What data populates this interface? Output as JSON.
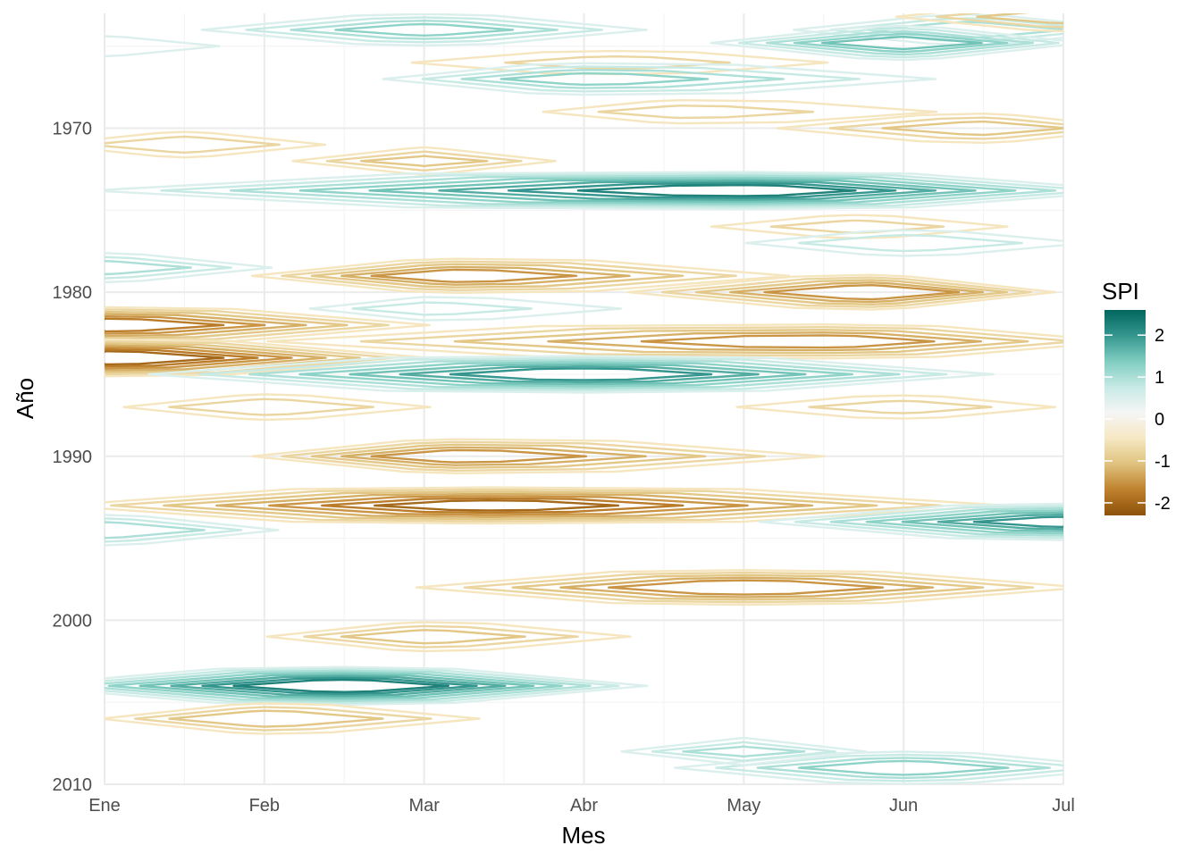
{
  "chart_data": {
    "type": "contour",
    "title": "",
    "xlabel": "Mes",
    "ylabel": "Año",
    "x_ticks": [
      "Ene",
      "Feb",
      "Mar",
      "Abr",
      "May",
      "Jun",
      "Jul"
    ],
    "y_ticks": [
      1970,
      1980,
      1990,
      2000,
      2010
    ],
    "xlim": [
      1,
      7
    ],
    "ylim": [
      1963,
      2010
    ],
    "y_reversed": true,
    "grid": true,
    "legend": {
      "title": "SPI",
      "position": "right",
      "ticks": [
        2,
        1,
        0,
        -1,
        -2
      ],
      "range": [
        -2.3,
        2.6
      ],
      "colors": [
        "#8c510a",
        "#bf812d",
        "#dfc27d",
        "#f6e8c3",
        "#f5f5f5",
        "#c7eae5",
        "#80cdc1",
        "#35978f",
        "#01665e"
      ]
    },
    "contour_levels": [
      -2.25,
      -2,
      -1.75,
      -1.5,
      -1.25,
      -1,
      -0.75,
      -0.5,
      0.5,
      0.75,
      1,
      1.25,
      1.5,
      1.75,
      2,
      2.25
    ],
    "events": [
      {
        "year": 1964.0,
        "from": 2.0,
        "to": 4.0,
        "peak_month": 3.0,
        "spi": 1.3
      },
      {
        "year": 1964.0,
        "from": 5.8,
        "to": 7.0,
        "peak_month": 6.4,
        "spi": 1.2
      },
      {
        "year": 1965.0,
        "from": 1.0,
        "to": 1.5,
        "peak_month": 1.0,
        "spi": 0.7
      },
      {
        "year": 1964.8,
        "from": 5.4,
        "to": 6.5,
        "peak_month": 6.0,
        "spi": 1.6
      },
      {
        "year": 1963.2,
        "from": 6.4,
        "to": 7.0,
        "peak_month": 7.0,
        "spi": -1.1
      },
      {
        "year": 1966.0,
        "from": 2.7,
        "to": 5.8,
        "peak_month": 4.2,
        "spi": -0.8
      },
      {
        "year": 1967.0,
        "from": 3.2,
        "to": 6.2,
        "peak_month": 4.0,
        "spi": 1.3
      },
      {
        "year": 1969.0,
        "from": 4.0,
        "to": 6.8,
        "peak_month": 4.6,
        "spi": -0.8
      },
      {
        "year": 1970.0,
        "from": 5.5,
        "to": 7.0,
        "peak_month": 6.5,
        "spi": -1.1
      },
      {
        "year": 1971.0,
        "from": 1.0,
        "to": 2.0,
        "peak_month": 1.5,
        "spi": -0.9
      },
      {
        "year": 1972.0,
        "from": 2.7,
        "to": 3.3,
        "peak_month": 3.0,
        "spi": -1.0
      },
      {
        "year": 1973.8,
        "from": 1.0,
        "to": 7.0,
        "peak_month": 5.0,
        "spi": 2.3
      },
      {
        "year": 1976.0,
        "from": 5.0,
        "to": 6.5,
        "peak_month": 5.7,
        "spi": -0.8
      },
      {
        "year": 1977.0,
        "from": 5.3,
        "to": 7.0,
        "peak_month": 6.0,
        "spi": 0.9
      },
      {
        "year": 1978.5,
        "from": 1.0,
        "to": 1.6,
        "peak_month": 1.0,
        "spi": 1.1
      },
      {
        "year": 1979.0,
        "from": 2.5,
        "to": 5.0,
        "peak_month": 3.2,
        "spi": -1.6
      },
      {
        "year": 1980.0,
        "from": 4.8,
        "to": 6.3,
        "peak_month": 5.8,
        "spi": -1.7
      },
      {
        "year": 1981.0,
        "from": 2.7,
        "to": 4.4,
        "peak_month": 3.0,
        "spi": 0.8
      },
      {
        "year": 1982.0,
        "from": 1.0,
        "to": 2.6,
        "peak_month": 1.0,
        "spi": -1.9
      },
      {
        "year": 1983.0,
        "from": 1.8,
        "to": 7.0,
        "peak_month": 5.5,
        "spi": -1.6
      },
      {
        "year": 1984.0,
        "from": 1.0,
        "to": 2.5,
        "peak_month": 1.0,
        "spi": -2.2
      },
      {
        "year": 1985.0,
        "from": 1.6,
        "to": 6.2,
        "peak_month": 4.0,
        "spi": 2.1
      },
      {
        "year": 1987.0,
        "from": 1.5,
        "to": 2.8,
        "peak_month": 2.0,
        "spi": -0.9
      },
      {
        "year": 1987.0,
        "from": 5.0,
        "to": 6.8,
        "peak_month": 6.0,
        "spi": -0.8
      },
      {
        "year": 1990.0,
        "from": 2.5,
        "to": 5.3,
        "peak_month": 3.2,
        "spi": -1.6
      },
      {
        "year": 1993.0,
        "from": 1.0,
        "to": 6.5,
        "peak_month": 3.4,
        "spi": -2.0
      },
      {
        "year": 1994.0,
        "from": 5.6,
        "to": 7.0,
        "peak_month": 7.0,
        "spi": 2.0
      },
      {
        "year": 1994.5,
        "from": 1.0,
        "to": 1.6,
        "peak_month": 1.0,
        "spi": 1.2
      },
      {
        "year": 1998.0,
        "from": 3.3,
        "to": 6.8,
        "peak_month": 5.0,
        "spi": -1.7
      },
      {
        "year": 2001.0,
        "from": 2.5,
        "to": 4.0,
        "peak_month": 3.0,
        "spi": -1.1
      },
      {
        "year": 2004.0,
        "from": 1.0,
        "to": 3.8,
        "peak_month": 2.5,
        "spi": 2.4
      },
      {
        "year": 2006.0,
        "from": 1.5,
        "to": 3.0,
        "peak_month": 2.0,
        "spi": -1.2
      },
      {
        "year": 2009.0,
        "from": 5.0,
        "to": 7.0,
        "peak_month": 6.0,
        "spi": 1.4
      },
      {
        "year": 2008.0,
        "from": 4.8,
        "to": 5.2,
        "peak_month": 5.0,
        "spi": 1.0
      }
    ]
  }
}
